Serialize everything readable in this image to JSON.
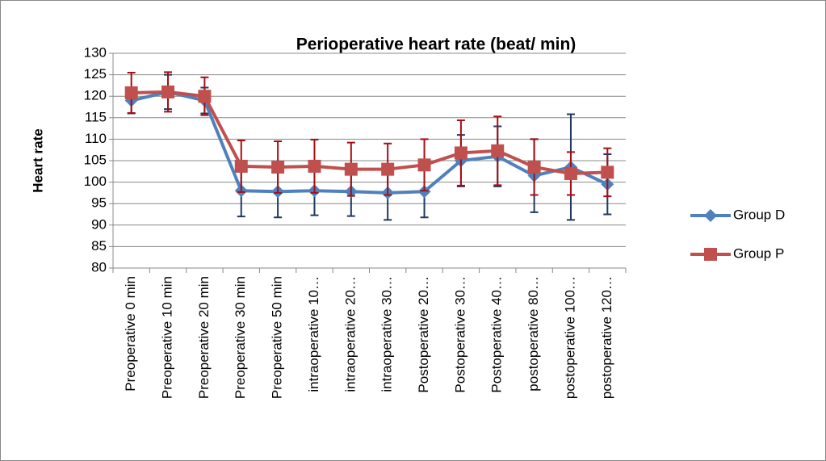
{
  "chart_data": {
    "type": "line",
    "title": "Perioperative heart rate (beat/ min)",
    "y_label": "Heart rate",
    "categories": [
      "Preoperative 0 min",
      "Preoperative 10 min",
      "Preoperative 20 min",
      "Preoperative 30 min",
      "Preoperative 50 min",
      "intraoperative 10…",
      "intraoperative 20…",
      "intraoperative 30…",
      "Postoperative 20…",
      "Postoperative 30…",
      "Postoperative 40…",
      "postoperative 80…",
      "postoperative 100…",
      "postoperative 120…"
    ],
    "series": [
      {
        "name": "Group D",
        "color": "#4f81bd",
        "error_color": "#1f3864",
        "marker": "diamond",
        "values": [
          119,
          121,
          119,
          98,
          97.8,
          98,
          97.8,
          97.5,
          97.8,
          105,
          106,
          101.5,
          103.5,
          99.5
        ],
        "errors": [
          3,
          4,
          3,
          6,
          6,
          5.7,
          5.7,
          6.3,
          6,
          6,
          7,
          8.5,
          12.3,
          7
        ]
      },
      {
        "name": "Group P",
        "color": "#c0504d",
        "error_color": "#a50f15",
        "marker": "square",
        "values": [
          120.8,
          121,
          120,
          103.7,
          103.5,
          103.7,
          103,
          103,
          104,
          106.8,
          107.3,
          103.5,
          102,
          102.3
        ],
        "errors": [
          4.7,
          4.6,
          4.4,
          6,
          6,
          6.2,
          6.2,
          6,
          6,
          7.6,
          8,
          6.5,
          5,
          5.6
        ]
      }
    ],
    "ylim": [
      80,
      130
    ],
    "yticks": [
      80,
      85,
      90,
      95,
      100,
      105,
      110,
      115,
      120,
      125,
      130
    ],
    "grid": true,
    "legend": "right"
  }
}
